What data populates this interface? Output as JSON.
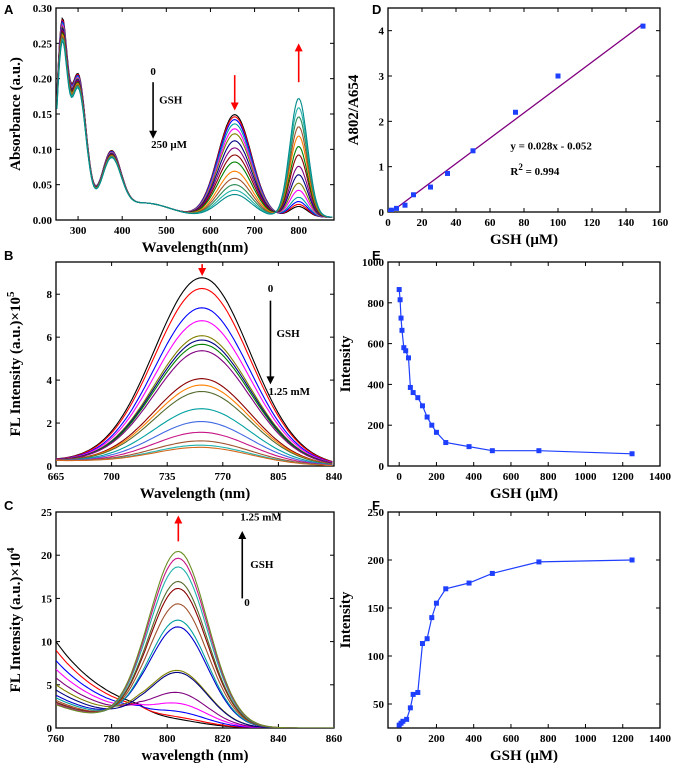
{
  "chart_data": [
    {
      "id": "A",
      "letter": "A",
      "type": "line",
      "xlabel": "Wavelength(nm)",
      "ylabel": "Absorbance (a.u.)",
      "xlim": [
        250,
        880
      ],
      "ylim": [
        0,
        0.3
      ],
      "xticks": [
        300,
        400,
        500,
        600,
        700,
        800
      ],
      "xtick_labels": [
        "300",
        "400",
        "500",
        "600",
        "700",
        "800"
      ],
      "yticks": [
        0,
        0.05,
        0.1,
        0.15,
        0.2,
        0.25,
        0.3
      ],
      "ytick_labels": [
        "0.00",
        "0.05",
        "0.10",
        "0.15",
        "0.20",
        "0.25",
        "0.30"
      ],
      "annotations": [
        {
          "text": "0"
        },
        {
          "text": "GSH"
        },
        {
          "text": "250 μM"
        }
      ],
      "curve_model": {
        "peak1_center": 263,
        "peak2_center": 375,
        "peak3_center": 655,
        "peak4_center": 800
      },
      "series": [
        {
          "name": "0",
          "color": "#000000",
          "p655": 0.145,
          "p800": 0.015
        },
        {
          "name": "s2",
          "color": "#ff0000",
          "p655": 0.142,
          "p800": 0.018
        },
        {
          "name": "s3",
          "color": "#0000ff",
          "p655": 0.138,
          "p800": 0.022
        },
        {
          "name": "s4",
          "color": "#00a0a0",
          "p655": 0.132,
          "p800": 0.028
        },
        {
          "name": "s5",
          "color": "#ff00ff",
          "p655": 0.125,
          "p800": 0.038
        },
        {
          "name": "s6",
          "color": "#808000",
          "p655": 0.118,
          "p800": 0.048
        },
        {
          "name": "s7",
          "color": "#000080",
          "p655": 0.108,
          "p800": 0.06
        },
        {
          "name": "s8",
          "color": "#800080",
          "p655": 0.098,
          "p800": 0.072
        },
        {
          "name": "s9",
          "color": "#8b0000",
          "p655": 0.088,
          "p800": 0.088
        },
        {
          "name": "s10",
          "color": "#008000",
          "p655": 0.078,
          "p800": 0.1
        },
        {
          "name": "s11",
          "color": "#ff8000",
          "p655": 0.065,
          "p800": 0.115
        },
        {
          "name": "s12",
          "color": "#a0522d",
          "p655": 0.055,
          "p800": 0.128
        },
        {
          "name": "s13",
          "color": "#2e8b57",
          "p655": 0.046,
          "p800": 0.142
        },
        {
          "name": "s14",
          "color": "#20b2aa",
          "p655": 0.038,
          "p800": 0.155
        },
        {
          "name": "250 μM",
          "color": "#008b8b",
          "p655": 0.032,
          "p800": 0.168
        }
      ]
    },
    {
      "id": "B",
      "letter": "B",
      "type": "line",
      "xlabel": "Wavelength (nm)",
      "ylabel": "FL Intensity (a.u.)×10",
      "ylabel_sup": "5",
      "xlim": [
        665,
        840
      ],
      "ylim": [
        0,
        9.5
      ],
      "xticks": [
        665,
        700,
        735,
        770,
        805,
        840
      ],
      "xtick_labels": [
        "665",
        "700",
        "735",
        "770",
        "805",
        "840"
      ],
      "yticks": [
        0,
        2,
        4,
        6,
        8
      ],
      "ytick_labels": [
        "0",
        "2",
        "4",
        "6",
        "8"
      ],
      "annotations": [
        {
          "text": "0"
        },
        {
          "text": "GSH"
        },
        {
          "text": "1.25 mM"
        }
      ],
      "curve_model": {
        "center": 757
      },
      "series": [
        {
          "name": "0",
          "color": "#000000",
          "peak": 8.65
        },
        {
          "name": "s2",
          "color": "#ff0000",
          "peak": 8.15
        },
        {
          "name": "s3",
          "color": "#0000ff",
          "peak": 7.25
        },
        {
          "name": "s4",
          "color": "#ff00ff",
          "peak": 6.65
        },
        {
          "name": "s5",
          "color": "#808000",
          "peak": 5.95
        },
        {
          "name": "s6",
          "color": "#000080",
          "peak": 5.75
        },
        {
          "name": "s7",
          "color": "#008000",
          "peak": 5.55
        },
        {
          "name": "s8",
          "color": "#800080",
          "peak": 5.25
        },
        {
          "name": "s9",
          "color": "#8b0000",
          "peak": 3.95
        },
        {
          "name": "s10",
          "color": "#ff8000",
          "peak": 3.65
        },
        {
          "name": "s11",
          "color": "#556b2f",
          "peak": 3.35
        },
        {
          "name": "s12",
          "color": "#00a0a0",
          "peak": 2.55
        },
        {
          "name": "s13",
          "color": "#4169e1",
          "peak": 1.95
        },
        {
          "name": "s14",
          "color": "#c71585",
          "peak": 1.45
        },
        {
          "name": "s15",
          "color": "#a0522d",
          "peak": 1.05
        },
        {
          "name": "s16",
          "color": "#20b2aa",
          "peak": 0.85
        },
        {
          "name": "1.25 mM",
          "color": "#d2691e",
          "peak": 0.75
        }
      ]
    },
    {
      "id": "C",
      "letter": "C",
      "type": "line",
      "xlabel": "wavelength (nm)",
      "ylabel": "FL Intensity (a.u.)×10",
      "ylabel_sup": "4",
      "xlim": [
        760,
        860
      ],
      "ylim": [
        0,
        25
      ],
      "xticks": [
        760,
        780,
        800,
        820,
        840,
        860
      ],
      "xtick_labels": [
        "760",
        "780",
        "800",
        "820",
        "840",
        "860"
      ],
      "yticks": [
        0,
        5,
        10,
        15,
        20,
        25
      ],
      "ytick_labels": [
        "0",
        "5",
        "10",
        "15",
        "20",
        "25"
      ],
      "annotations": [
        {
          "text": "1.25 mM"
        },
        {
          "text": "GSH"
        },
        {
          "text": "0"
        }
      ],
      "curve_model": {
        "center": 804
      },
      "series": [
        {
          "name": "0",
          "color": "#000000",
          "peak": 0.5,
          "left": 10.0
        },
        {
          "name": "s2",
          "color": "#ff0000",
          "peak": 0.8,
          "left": 9.0
        },
        {
          "name": "s3",
          "color": "#0000ff",
          "peak": 1.5,
          "left": 7.8
        },
        {
          "name": "s4",
          "color": "#ff00ff",
          "peak": 2.5,
          "left": 6.8
        },
        {
          "name": "s5",
          "color": "#800080",
          "peak": 3.8,
          "left": 5.8
        },
        {
          "name": "s6",
          "color": "#808000",
          "peak": 6.4,
          "left": 5.0
        },
        {
          "name": "s7",
          "color": "#000080",
          "peak": 6.2,
          "left": 4.4
        },
        {
          "name": "s8",
          "color": "#0000cd",
          "peak": 11.5,
          "left": 3.8
        },
        {
          "name": "s9",
          "color": "#00a0a0",
          "peak": 12.3,
          "left": 3.5
        },
        {
          "name": "s10",
          "color": "#a0522d",
          "peak": 14.2,
          "left": 3.2
        },
        {
          "name": "s11",
          "color": "#8b0000",
          "peak": 16.0,
          "left": 3.0
        },
        {
          "name": "s12",
          "color": "#556b2f",
          "peak": 16.8,
          "left": 2.9
        },
        {
          "name": "s13",
          "color": "#20b2aa",
          "peak": 18.5,
          "left": 2.8
        },
        {
          "name": "s14",
          "color": "#c71585",
          "peak": 19.5,
          "left": 2.8
        },
        {
          "name": "1.25 mM",
          "color": "#6b8e23",
          "peak": 20.3,
          "left": 2.7
        }
      ]
    },
    {
      "id": "D",
      "letter": "D",
      "type": "scatter",
      "xlabel": "GSH (μM)",
      "ylabel": "A802/A654",
      "xlim": [
        0,
        160
      ],
      "ylim": [
        0,
        4.5
      ],
      "xticks": [
        0,
        20,
        40,
        60,
        80,
        100,
        120,
        140,
        160
      ],
      "xtick_labels": [
        "0",
        "20",
        "40",
        "60",
        "80",
        "100",
        "120",
        "140",
        "160"
      ],
      "yticks": [
        0,
        1,
        2,
        3,
        4
      ],
      "ytick_labels": [
        "0",
        "1",
        "2",
        "3",
        "4"
      ],
      "points": [
        [
          0,
          0.01
        ],
        [
          2,
          0.04
        ],
        [
          5,
          0.08
        ],
        [
          10,
          0.15
        ],
        [
          15,
          0.38
        ],
        [
          25,
          0.55
        ],
        [
          35,
          0.85
        ],
        [
          50,
          1.35
        ],
        [
          75,
          2.2
        ],
        [
          100,
          3.0
        ],
        [
          150,
          4.1
        ]
      ],
      "fit": {
        "slope": 0.028,
        "intercept": -0.052,
        "x_range": [
          0,
          150
        ],
        "color": "#800080"
      },
      "equation": "y = 0.028x - 0.052",
      "r2_label": "R",
      "r2_sup": "2",
      "r2_value": " = 0.994",
      "marker_color": "#1f3fff"
    },
    {
      "id": "E",
      "letter": "E",
      "type": "line",
      "xlabel": "GSH (μM)",
      "ylabel": "Intensity",
      "xlim": [
        -60,
        1400
      ],
      "ylim": [
        0,
        1000
      ],
      "xticks": [
        0,
        200,
        400,
        600,
        800,
        1000,
        1200,
        1400
      ],
      "xtick_labels": [
        "0",
        "200",
        "400",
        "600",
        "800",
        "1000",
        "1200",
        "1400"
      ],
      "yticks": [
        0,
        200,
        400,
        600,
        800,
        1000
      ],
      "ytick_labels": [
        "0",
        "200",
        "400",
        "600",
        "800",
        "1000"
      ],
      "points": [
        [
          0,
          865
        ],
        [
          5,
          815
        ],
        [
          10,
          725
        ],
        [
          15,
          665
        ],
        [
          25,
          580
        ],
        [
          35,
          565
        ],
        [
          50,
          530
        ],
        [
          60,
          385
        ],
        [
          75,
          360
        ],
        [
          100,
          335
        ],
        [
          125,
          295
        ],
        [
          150,
          240
        ],
        [
          175,
          200
        ],
        [
          200,
          165
        ],
        [
          250,
          115
        ],
        [
          375,
          95
        ],
        [
          500,
          75
        ],
        [
          750,
          75
        ],
        [
          1250,
          60
        ]
      ],
      "color": "#1f3fff"
    },
    {
      "id": "F",
      "letter": "F",
      "type": "line",
      "xlabel": "GSH (μM)",
      "ylabel": "Intensity",
      "xlim": [
        -60,
        1400
      ],
      "ylim": [
        25,
        250
      ],
      "xticks": [
        0,
        200,
        400,
        600,
        800,
        1000,
        1200,
        1400
      ],
      "xtick_labels": [
        "0",
        "200",
        "400",
        "600",
        "800",
        "1000",
        "1200",
        "1400"
      ],
      "yticks": [
        50,
        100,
        150,
        200,
        250
      ],
      "ytick_labels": [
        "50",
        "100",
        "150",
        "200",
        "250"
      ],
      "points": [
        [
          0,
          28
        ],
        [
          10,
          30
        ],
        [
          20,
          32
        ],
        [
          40,
          34
        ],
        [
          60,
          46
        ],
        [
          75,
          60
        ],
        [
          100,
          62
        ],
        [
          125,
          113
        ],
        [
          150,
          118
        ],
        [
          175,
          140
        ],
        [
          200,
          155
        ],
        [
          250,
          170
        ],
        [
          375,
          176
        ],
        [
          500,
          186
        ],
        [
          750,
          198
        ],
        [
          1250,
          200
        ]
      ],
      "color": "#1f3fff"
    }
  ]
}
